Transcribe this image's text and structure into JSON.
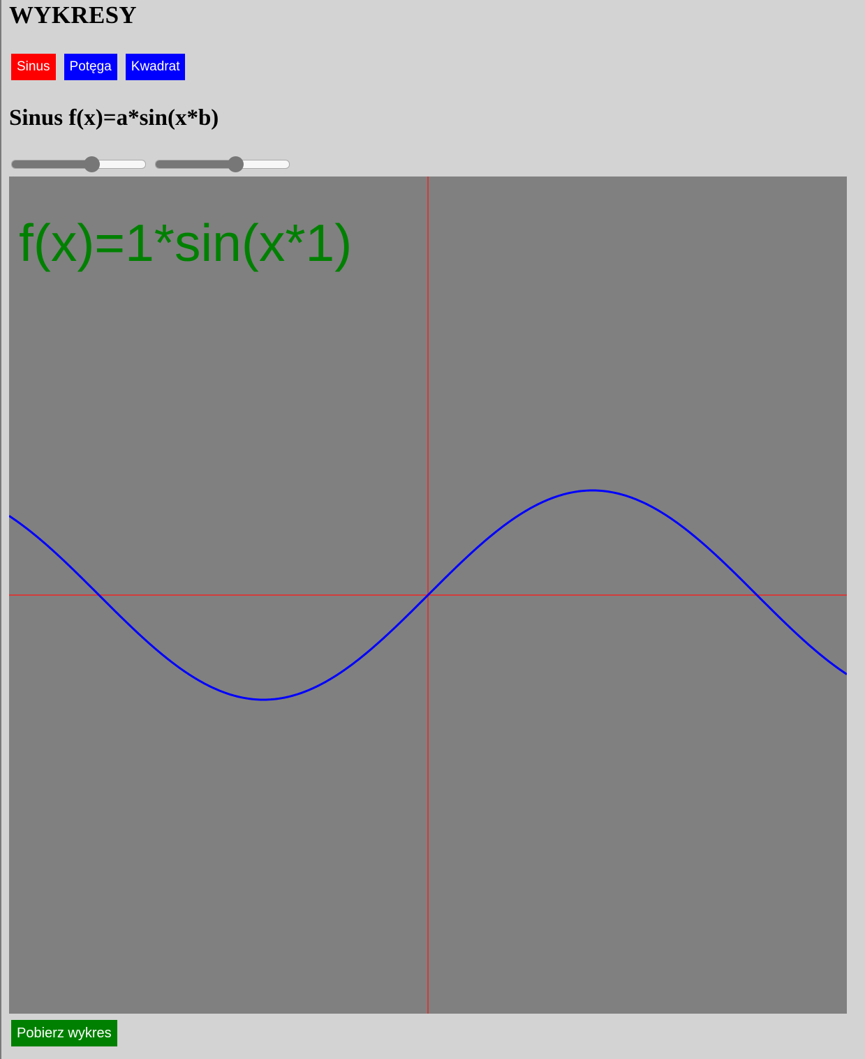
{
  "header": {
    "title": "WYKRESY"
  },
  "tabs": [
    {
      "label": "Sinus",
      "color": "#ff0000",
      "active": true
    },
    {
      "label": "Potęga",
      "color": "#0000ff",
      "active": false
    },
    {
      "label": "Kwadrat",
      "color": "#0000ff",
      "active": false
    }
  ],
  "section": {
    "title": "Sinus f(x)=a*sin(x*b)"
  },
  "sliders": [
    {
      "param": "a",
      "fraction": 0.6
    },
    {
      "param": "b",
      "fraction": 0.6
    }
  ],
  "download": {
    "label": "Pobierz wykres",
    "color": "#008000"
  },
  "chart_data": {
    "type": "line",
    "title": "f(x)=1*sin(x*1)",
    "a": 1,
    "b": 1,
    "xlim": [
      -4,
      4
    ],
    "ylim": [
      -4,
      4
    ],
    "grid": false,
    "colors": {
      "background": "#808080",
      "axes": "#d23c3c",
      "curve": "#0000ff",
      "title": "#008000"
    }
  }
}
